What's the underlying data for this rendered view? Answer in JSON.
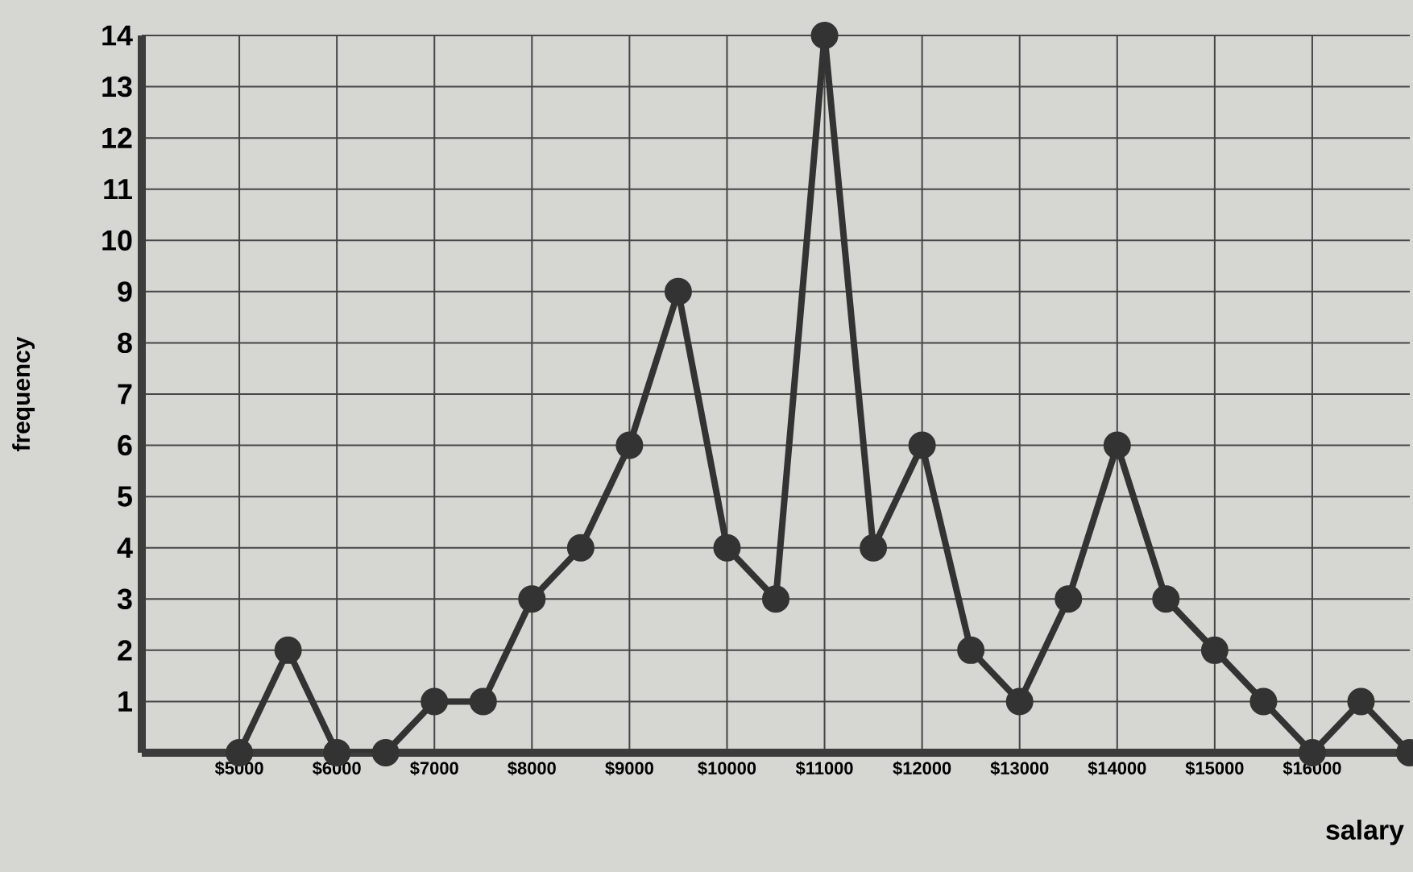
{
  "chart_data": {
    "type": "line",
    "xlabel": "salary",
    "ylabel": "frequency",
    "x": [
      5000,
      5500,
      6000,
      6500,
      7000,
      7500,
      8000,
      8500,
      9000,
      9500,
      10000,
      10500,
      11000,
      11500,
      12000,
      12500,
      13000,
      13500,
      14000,
      14500,
      15000,
      15500,
      16000,
      16500,
      17000
    ],
    "values": [
      0,
      2,
      0,
      0,
      1,
      1,
      3,
      4,
      6,
      9,
      4,
      3,
      14,
      4,
      6,
      2,
      1,
      3,
      6,
      3,
      2,
      1,
      0,
      1,
      0
    ],
    "color": "#333333",
    "marker": "circle",
    "line_style": "solid",
    "grid": true,
    "xlim": [
      4000,
      17000
    ],
    "ylim": [
      0,
      14
    ],
    "xticks": [
      {
        "value": 5000,
        "label": "$5000"
      },
      {
        "value": 6000,
        "label": "$6000"
      },
      {
        "value": 7000,
        "label": "$7000"
      },
      {
        "value": 8000,
        "label": "$8000"
      },
      {
        "value": 9000,
        "label": "$9000"
      },
      {
        "value": 10000,
        "label": "$10000"
      },
      {
        "value": 11000,
        "label": "$11000"
      },
      {
        "value": 12000,
        "label": "$12000"
      },
      {
        "value": 13000,
        "label": "$13000"
      },
      {
        "value": 14000,
        "label": "$14000"
      },
      {
        "value": 15000,
        "label": "$15000"
      },
      {
        "value": 16000,
        "label": "$16000"
      }
    ],
    "yticks": [
      1,
      2,
      3,
      4,
      5,
      6,
      7,
      8,
      9,
      10,
      11,
      12,
      13,
      14
    ]
  }
}
